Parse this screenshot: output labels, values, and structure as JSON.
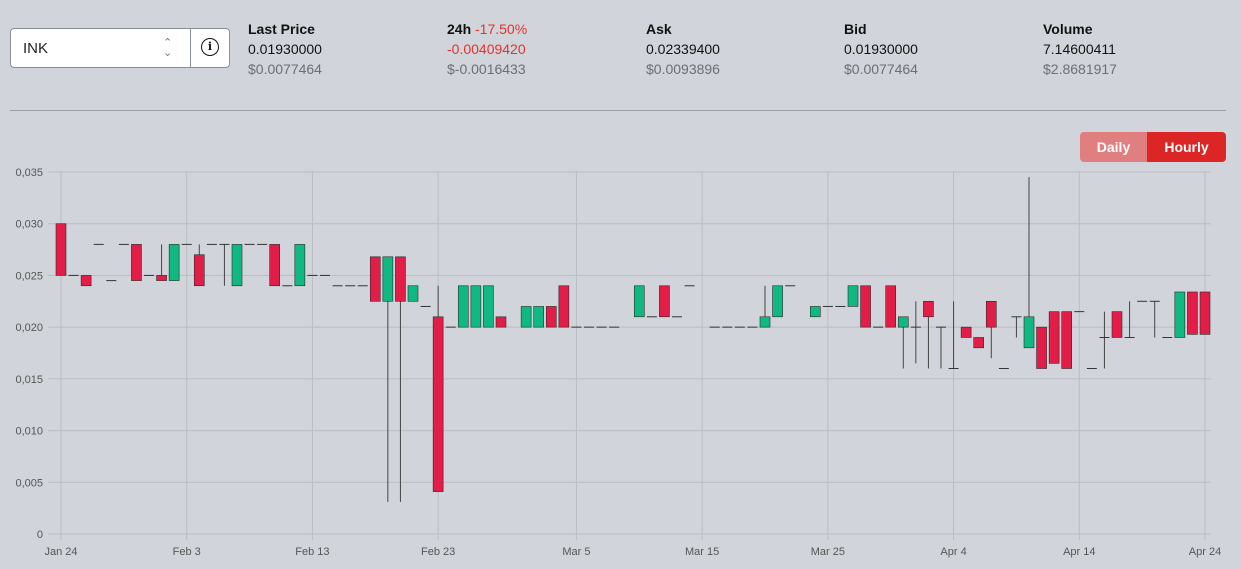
{
  "selector": {
    "value": "INK",
    "chevron": "⌃\n⌄"
  },
  "stats": [
    {
      "label": "Last Price",
      "value": "0.01930000",
      "usd": "$0.0077464"
    },
    {
      "label": "24h",
      "change": "-17.50%",
      "value": "-0.00409420",
      "usd": "$-0.0016433"
    },
    {
      "label": "Ask",
      "value": "0.02339400",
      "usd": "$0.0093896"
    },
    {
      "label": "Bid",
      "value": "0.01930000",
      "usd": "$0.0077464"
    },
    {
      "label": "Volume",
      "value": "7.14600411",
      "usd": "$2.8681917"
    }
  ],
  "toggle": {
    "daily": "Daily",
    "hourly": "Hourly",
    "active": "Hourly"
  },
  "colors": {
    "up": "#10b981",
    "down": "#e11d48",
    "doji": "#333333"
  },
  "chart_data": {
    "type": "candlestick",
    "ylim": [
      0,
      0.035
    ],
    "yticks": [
      "0",
      "0,005",
      "0,010",
      "0,015",
      "0,020",
      "0,025",
      "0,030",
      "0,035"
    ],
    "xticks": [
      "Jan 24",
      "Feb 3",
      "Feb 13",
      "Feb 23",
      "Mar 5",
      "Mar 15",
      "Mar 25",
      "Apr 4",
      "Apr 14",
      "Apr 24"
    ],
    "x_start": "Jan 24",
    "x_end": "Apr 24",
    "grid": true,
    "candles": [
      {
        "date": "Jan 24",
        "open": 0.03,
        "high": 0.03,
        "low": 0.025,
        "close": 0.025
      },
      {
        "date": "Jan 25",
        "open": 0.025,
        "high": 0.025,
        "low": 0.025,
        "close": 0.025
      },
      {
        "date": "Jan 26",
        "open": 0.025,
        "high": 0.025,
        "low": 0.024,
        "close": 0.024
      },
      {
        "date": "Jan 27",
        "open": 0.028,
        "high": 0.028,
        "low": 0.028,
        "close": 0.028
      },
      {
        "date": "Jan 28",
        "open": 0.0245,
        "high": 0.0245,
        "low": 0.0245,
        "close": 0.0245
      },
      {
        "date": "Jan 29",
        "open": 0.028,
        "high": 0.028,
        "low": 0.028,
        "close": 0.028
      },
      {
        "date": "Jan 30",
        "open": 0.028,
        "high": 0.028,
        "low": 0.0245,
        "close": 0.0245
      },
      {
        "date": "Jan 31",
        "open": 0.025,
        "high": 0.025,
        "low": 0.025,
        "close": 0.025
      },
      {
        "date": "Feb 1",
        "open": 0.025,
        "high": 0.028,
        "low": 0.0245,
        "close": 0.0245
      },
      {
        "date": "Feb 2",
        "open": 0.0245,
        "high": 0.028,
        "low": 0.0245,
        "close": 0.028
      },
      {
        "date": "Feb 3",
        "open": 0.028,
        "high": 0.028,
        "low": 0.028,
        "close": 0.028
      },
      {
        "date": "Feb 4",
        "open": 0.027,
        "high": 0.028,
        "low": 0.024,
        "close": 0.024
      },
      {
        "date": "Feb 5",
        "open": 0.028,
        "high": 0.028,
        "low": 0.028,
        "close": 0.028
      },
      {
        "date": "Feb 6",
        "open": 0.028,
        "high": 0.028,
        "low": 0.024,
        "close": 0.028
      },
      {
        "date": "Feb 7",
        "open": 0.024,
        "high": 0.028,
        "low": 0.024,
        "close": 0.028
      },
      {
        "date": "Feb 8",
        "open": 0.028,
        "high": 0.028,
        "low": 0.028,
        "close": 0.028
      },
      {
        "date": "Feb 9",
        "open": 0.028,
        "high": 0.028,
        "low": 0.028,
        "close": 0.028
      },
      {
        "date": "Feb 10",
        "open": 0.028,
        "high": 0.028,
        "low": 0.024,
        "close": 0.024
      },
      {
        "date": "Feb 11",
        "open": 0.024,
        "high": 0.024,
        "low": 0.024,
        "close": 0.024
      },
      {
        "date": "Feb 12",
        "open": 0.024,
        "high": 0.028,
        "low": 0.024,
        "close": 0.028
      },
      {
        "date": "Feb 13",
        "open": 0.025,
        "high": 0.025,
        "low": 0.025,
        "close": 0.025
      },
      {
        "date": "Feb 14",
        "open": 0.025,
        "high": 0.025,
        "low": 0.025,
        "close": 0.025
      },
      {
        "date": "Feb 15",
        "open": 0.024,
        "high": 0.024,
        "low": 0.024,
        "close": 0.024
      },
      {
        "date": "Feb 16",
        "open": 0.024,
        "high": 0.024,
        "low": 0.024,
        "close": 0.024
      },
      {
        "date": "Feb 17",
        "open": 0.024,
        "high": 0.024,
        "low": 0.024,
        "close": 0.024
      },
      {
        "date": "Feb 18",
        "open": 0.0268,
        "high": 0.0268,
        "low": 0.0225,
        "close": 0.0225
      },
      {
        "date": "Feb 19",
        "open": 0.0225,
        "high": 0.0268,
        "low": 0.0031,
        "close": 0.0268
      },
      {
        "date": "Feb 20",
        "open": 0.0268,
        "high": 0.0268,
        "low": 0.0031,
        "close": 0.0225
      },
      {
        "date": "Feb 21",
        "open": 0.0225,
        "high": 0.024,
        "low": 0.0225,
        "close": 0.024
      },
      {
        "date": "Feb 22",
        "open": 0.022,
        "high": 0.022,
        "low": 0.022,
        "close": 0.022
      },
      {
        "date": "Feb 23",
        "open": 0.021,
        "high": 0.024,
        "low": 0.0041,
        "close": 0.0041
      },
      {
        "date": "Feb 24",
        "open": 0.02,
        "high": 0.02,
        "low": 0.02,
        "close": 0.02
      },
      {
        "date": "Feb 25",
        "open": 0.02,
        "high": 0.024,
        "low": 0.02,
        "close": 0.024
      },
      {
        "date": "Feb 26",
        "open": 0.02,
        "high": 0.024,
        "low": 0.02,
        "close": 0.024
      },
      {
        "date": "Feb 27",
        "open": 0.02,
        "high": 0.024,
        "low": 0.02,
        "close": 0.024
      },
      {
        "date": "Feb 28",
        "open": 0.021,
        "high": 0.021,
        "low": 0.02,
        "close": 0.02
      },
      {
        "date": "Mar 1",
        "open": 0.02,
        "high": 0.022,
        "low": 0.02,
        "close": 0.022
      },
      {
        "date": "Mar 2",
        "open": 0.02,
        "high": 0.022,
        "low": 0.02,
        "close": 0.022
      },
      {
        "date": "Mar 3",
        "open": 0.022,
        "high": 0.022,
        "low": 0.02,
        "close": 0.02
      },
      {
        "date": "Mar 4",
        "open": 0.024,
        "high": 0.024,
        "low": 0.02,
        "close": 0.02
      },
      {
        "date": "Mar 5",
        "open": 0.02,
        "high": 0.02,
        "low": 0.02,
        "close": 0.02
      },
      {
        "date": "Mar 6",
        "open": 0.02,
        "high": 0.02,
        "low": 0.02,
        "close": 0.02
      },
      {
        "date": "Mar 7",
        "open": 0.02,
        "high": 0.02,
        "low": 0.02,
        "close": 0.02
      },
      {
        "date": "Mar 8",
        "open": 0.02,
        "high": 0.02,
        "low": 0.02,
        "close": 0.02
      },
      {
        "date": "Mar 10",
        "open": 0.021,
        "high": 0.024,
        "low": 0.021,
        "close": 0.024
      },
      {
        "date": "Mar 11",
        "open": 0.021,
        "high": 0.021,
        "low": 0.021,
        "close": 0.021
      },
      {
        "date": "Mar 12",
        "open": 0.024,
        "high": 0.024,
        "low": 0.021,
        "close": 0.021
      },
      {
        "date": "Mar 13",
        "open": 0.021,
        "high": 0.021,
        "low": 0.021,
        "close": 0.021
      },
      {
        "date": "Mar 14",
        "open": 0.024,
        "high": 0.024,
        "low": 0.024,
        "close": 0.024
      },
      {
        "date": "Mar 16",
        "open": 0.02,
        "high": 0.02,
        "low": 0.02,
        "close": 0.02
      },
      {
        "date": "Mar 17",
        "open": 0.02,
        "high": 0.02,
        "low": 0.02,
        "close": 0.02
      },
      {
        "date": "Mar 18",
        "open": 0.02,
        "high": 0.02,
        "low": 0.02,
        "close": 0.02
      },
      {
        "date": "Mar 19",
        "open": 0.02,
        "high": 0.02,
        "low": 0.02,
        "close": 0.02
      },
      {
        "date": "Mar 20",
        "open": 0.02,
        "high": 0.024,
        "low": 0.02,
        "close": 0.021
      },
      {
        "date": "Mar 21",
        "open": 0.021,
        "high": 0.024,
        "low": 0.021,
        "close": 0.024
      },
      {
        "date": "Mar 22",
        "open": 0.024,
        "high": 0.024,
        "low": 0.024,
        "close": 0.024
      },
      {
        "date": "Mar 24",
        "open": 0.021,
        "high": 0.022,
        "low": 0.021,
        "close": 0.022
      },
      {
        "date": "Mar 25",
        "open": 0.022,
        "high": 0.022,
        "low": 0.022,
        "close": 0.022
      },
      {
        "date": "Mar 26",
        "open": 0.022,
        "high": 0.022,
        "low": 0.022,
        "close": 0.022
      },
      {
        "date": "Mar 27",
        "open": 0.022,
        "high": 0.024,
        "low": 0.022,
        "close": 0.024
      },
      {
        "date": "Mar 28",
        "open": 0.024,
        "high": 0.024,
        "low": 0.02,
        "close": 0.02
      },
      {
        "date": "Mar 29",
        "open": 0.02,
        "high": 0.02,
        "low": 0.02,
        "close": 0.02
      },
      {
        "date": "Mar 30",
        "open": 0.024,
        "high": 0.024,
        "low": 0.02,
        "close": 0.02
      },
      {
        "date": "Mar 31",
        "open": 0.02,
        "high": 0.021,
        "low": 0.016,
        "close": 0.021
      },
      {
        "date": "Apr 1",
        "open": 0.02,
        "high": 0.0225,
        "low": 0.0165,
        "close": 0.02
      },
      {
        "date": "Apr 2",
        "open": 0.0225,
        "high": 0.0225,
        "low": 0.016,
        "close": 0.021
      },
      {
        "date": "Apr 3",
        "open": 0.02,
        "high": 0.02,
        "low": 0.016,
        "close": 0.02
      },
      {
        "date": "Apr 4",
        "open": 0.016,
        "high": 0.0225,
        "low": 0.016,
        "close": 0.016
      },
      {
        "date": "Apr 5",
        "open": 0.02,
        "high": 0.02,
        "low": 0.019,
        "close": 0.019
      },
      {
        "date": "Apr 6",
        "open": 0.019,
        "high": 0.019,
        "low": 0.018,
        "close": 0.018
      },
      {
        "date": "Apr 7",
        "open": 0.0225,
        "high": 0.0225,
        "low": 0.017,
        "close": 0.02
      },
      {
        "date": "Apr 8",
        "open": 0.016,
        "high": 0.016,
        "low": 0.016,
        "close": 0.016
      },
      {
        "date": "Apr 9",
        "open": 0.021,
        "high": 0.021,
        "low": 0.019,
        "close": 0.021
      },
      {
        "date": "Apr 10",
        "open": 0.018,
        "high": 0.0345,
        "low": 0.018,
        "close": 0.021
      },
      {
        "date": "Apr 11",
        "open": 0.02,
        "high": 0.02,
        "low": 0.016,
        "close": 0.016
      },
      {
        "date": "Apr 12",
        "open": 0.0215,
        "high": 0.0215,
        "low": 0.0165,
        "close": 0.0165
      },
      {
        "date": "Apr 13",
        "open": 0.0215,
        "high": 0.0215,
        "low": 0.016,
        "close": 0.016
      },
      {
        "date": "Apr 14",
        "open": 0.0215,
        "high": 0.0215,
        "low": 0.0215,
        "close": 0.0215
      },
      {
        "date": "Apr 15",
        "open": 0.016,
        "high": 0.016,
        "low": 0.016,
        "close": 0.016
      },
      {
        "date": "Apr 16",
        "open": 0.019,
        "high": 0.0215,
        "low": 0.016,
        "close": 0.019
      },
      {
        "date": "Apr 17",
        "open": 0.0215,
        "high": 0.0215,
        "low": 0.019,
        "close": 0.019
      },
      {
        "date": "Apr 18",
        "open": 0.019,
        "high": 0.0225,
        "low": 0.019,
        "close": 0.019
      },
      {
        "date": "Apr 19",
        "open": 0.0225,
        "high": 0.0225,
        "low": 0.0225,
        "close": 0.0225
      },
      {
        "date": "Apr 20",
        "open": 0.0225,
        "high": 0.0225,
        "low": 0.019,
        "close": 0.0225
      },
      {
        "date": "Apr 21",
        "open": 0.019,
        "high": 0.019,
        "low": 0.019,
        "close": 0.019
      },
      {
        "date": "Apr 22",
        "open": 0.019,
        "high": 0.0234,
        "low": 0.019,
        "close": 0.0234
      },
      {
        "date": "Apr 23",
        "open": 0.0234,
        "high": 0.0234,
        "low": 0.0193,
        "close": 0.0193
      },
      {
        "date": "Apr 24",
        "open": 0.0234,
        "high": 0.0234,
        "low": 0.0193,
        "close": 0.0193
      }
    ]
  }
}
